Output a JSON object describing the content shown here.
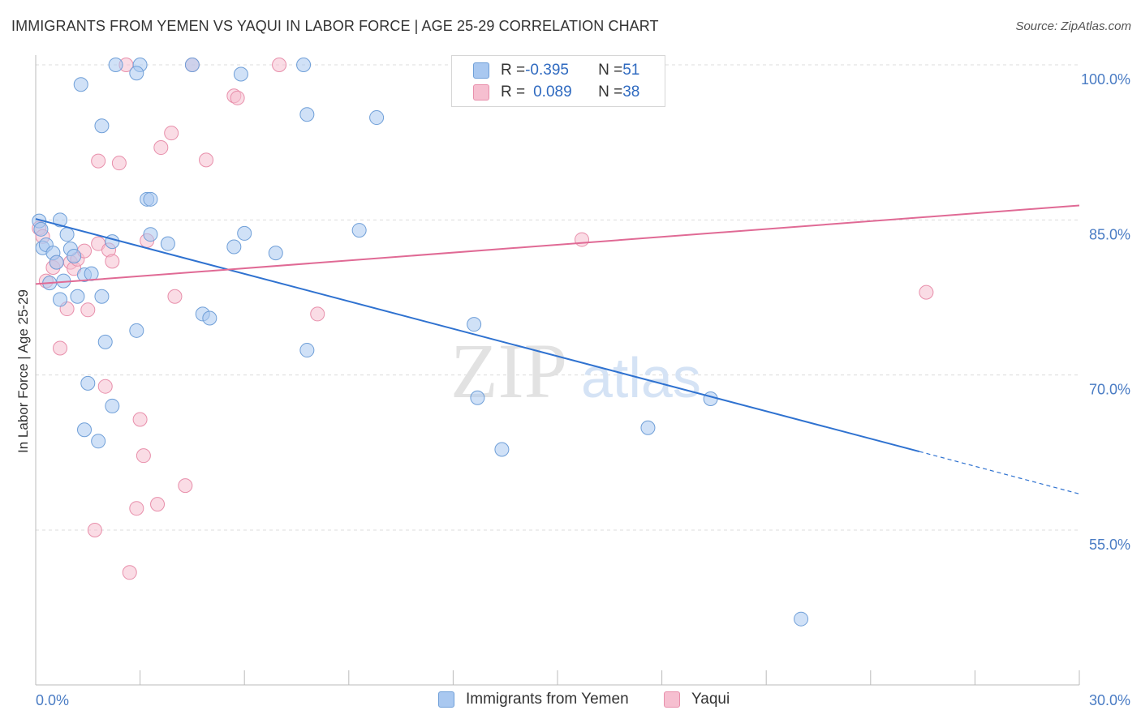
{
  "title": "IMMIGRANTS FROM YEMEN VS YAQUI IN LABOR FORCE | AGE 25-29 CORRELATION CHART",
  "source": "Source: ZipAtlas.com",
  "watermark": {
    "zip": "ZIP",
    "atlas": "atlas"
  },
  "legend_top": {
    "rows": [
      {
        "r_label": "R = ",
        "r_value": "-0.395",
        "n_label": "N = ",
        "n_value": "51"
      },
      {
        "r_label": "R = ",
        "r_value": "0.089",
        "n_label": "N = ",
        "n_value": "38"
      }
    ]
  },
  "legend_bottom": [
    {
      "label": "Immigrants from Yemen"
    },
    {
      "label": "Yaqui"
    }
  ],
  "colors": {
    "blue_fill": "#a9c8f0",
    "blue_stroke": "#6f9fd8",
    "blue_line": "#2f72d0",
    "pink_fill": "#f6bfd0",
    "pink_stroke": "#e88fab",
    "pink_line": "#e06a95",
    "grid": "#dcdcdc",
    "tick_text": "#4a7cc4"
  },
  "chart_data": {
    "type": "scatter",
    "xlabel": "",
    "ylabel": "In Labor Force | Age 25-29",
    "xlim": [
      0,
      30
    ],
    "ylim": [
      40,
      103
    ],
    "x_tick_labels": [
      "0.0%",
      "30.0%"
    ],
    "y_ticks": [
      100,
      85,
      70,
      55
    ],
    "y_tick_labels": [
      "100.0%",
      "85.0%",
      "70.0%",
      "55.0%"
    ],
    "series": [
      {
        "name": "Immigrants from Yemen",
        "r": -0.395,
        "n": 51,
        "trend": {
          "x0": 0,
          "y0": 85.1,
          "x1": 25.4,
          "y1": 62.6,
          "dash_to_x": 30,
          "dash_to_y": 58.5
        },
        "points": [
          [
            0.1,
            84.9
          ],
          [
            0.15,
            84.1
          ],
          [
            0.2,
            82.3
          ],
          [
            0.3,
            82.6
          ],
          [
            0.5,
            81.8
          ],
          [
            0.6,
            80.9
          ],
          [
            0.4,
            78.9
          ],
          [
            0.7,
            85.0
          ],
          [
            0.9,
            83.6
          ],
          [
            1.0,
            82.2
          ],
          [
            1.1,
            81.5
          ],
          [
            0.8,
            79.1
          ],
          [
            0.7,
            77.3
          ],
          [
            1.2,
            77.6
          ],
          [
            1.4,
            79.7
          ],
          [
            1.6,
            79.8
          ],
          [
            1.9,
            77.6
          ],
          [
            2.2,
            82.9
          ],
          [
            2.0,
            73.2
          ],
          [
            2.2,
            67.0
          ],
          [
            1.5,
            69.2
          ],
          [
            1.4,
            64.7
          ],
          [
            1.8,
            63.6
          ],
          [
            2.3,
            100.0
          ],
          [
            3.0,
            100.0
          ],
          [
            2.9,
            99.2
          ],
          [
            1.3,
            98.1
          ],
          [
            1.9,
            94.1
          ],
          [
            3.2,
            87.0
          ],
          [
            3.3,
            87.0
          ],
          [
            3.3,
            83.6
          ],
          [
            3.8,
            82.7
          ],
          [
            2.9,
            74.3
          ],
          [
            4.5,
            100.0
          ],
          [
            5.9,
            99.1
          ],
          [
            7.7,
            100.0
          ],
          [
            7.8,
            95.2
          ],
          [
            9.8,
            94.9
          ],
          [
            4.8,
            75.9
          ],
          [
            5.0,
            75.5
          ],
          [
            5.7,
            82.4
          ],
          [
            6.0,
            83.7
          ],
          [
            6.9,
            81.8
          ],
          [
            7.8,
            72.4
          ],
          [
            9.3,
            84.0
          ],
          [
            12.6,
            74.9
          ],
          [
            12.7,
            67.8
          ],
          [
            13.4,
            62.8
          ],
          [
            17.6,
            64.9
          ],
          [
            19.4,
            67.7
          ],
          [
            22.0,
            46.4
          ]
        ]
      },
      {
        "name": "Yaqui",
        "r": 0.089,
        "n": 38,
        "trend": {
          "x0": 0,
          "y0": 78.8,
          "x1": 30,
          "y1": 86.4
        },
        "points": [
          [
            0.1,
            84.2
          ],
          [
            0.2,
            83.4
          ],
          [
            0.3,
            79.1
          ],
          [
            0.5,
            80.4
          ],
          [
            0.6,
            80.9
          ],
          [
            0.9,
            76.4
          ],
          [
            0.7,
            72.6
          ],
          [
            1.0,
            80.9
          ],
          [
            1.1,
            80.3
          ],
          [
            1.2,
            81.2
          ],
          [
            1.4,
            82.0
          ],
          [
            1.5,
            76.3
          ],
          [
            1.8,
            82.7
          ],
          [
            2.1,
            82.1
          ],
          [
            2.2,
            81.0
          ],
          [
            1.8,
            90.7
          ],
          [
            2.4,
            90.5
          ],
          [
            2.6,
            100.0
          ],
          [
            3.2,
            83.0
          ],
          [
            3.6,
            92.0
          ],
          [
            3.9,
            93.4
          ],
          [
            4.5,
            100.0
          ],
          [
            4.9,
            90.8
          ],
          [
            5.7,
            97.0
          ],
          [
            5.8,
            96.8
          ],
          [
            7.0,
            100.0
          ],
          [
            4.0,
            77.6
          ],
          [
            2.0,
            68.9
          ],
          [
            3.0,
            65.7
          ],
          [
            3.1,
            62.2
          ],
          [
            3.5,
            57.5
          ],
          [
            2.9,
            57.1
          ],
          [
            4.3,
            59.3
          ],
          [
            1.7,
            55.0
          ],
          [
            2.7,
            50.9
          ],
          [
            8.1,
            75.9
          ],
          [
            15.7,
            83.1
          ],
          [
            25.6,
            78.0
          ]
        ]
      }
    ]
  }
}
